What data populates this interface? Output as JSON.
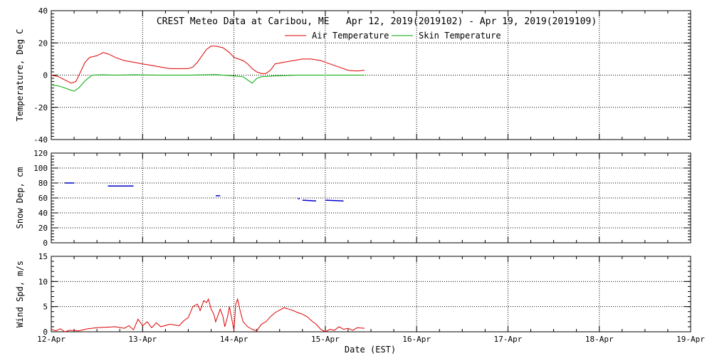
{
  "title": "CREST Meteo Data at Caribou, ME   Apr 12, 2019(2019102) - Apr 19, 2019(2019109)",
  "xlabel": "Date (EST)",
  "colors": {
    "air": "#dd0000",
    "skin": "#00aa00",
    "snow": "#0000cc",
    "wind": "#dd0000",
    "axis": "#000000"
  },
  "chart_data": [
    {
      "type": "line",
      "ylabel": "Temperature, Deg C",
      "xlim": [
        0,
        7
      ],
      "ylim": [
        -40,
        40
      ],
      "yticks": [
        -40,
        -20,
        0,
        20,
        40
      ],
      "xtick_labels": [
        "12-Apr",
        "13-Apr",
        "14-Apr",
        "15-Apr",
        "16-Apr",
        "17-Apr",
        "18-Apr",
        "19-Apr"
      ],
      "x_units": "days since Apr 12 00:00 EST",
      "legend_position": "top-center",
      "series": [
        {
          "name": "Air Temperature",
          "points": [
            [
              0,
              0
            ],
            [
              0.08,
              -1
            ],
            [
              0.15,
              -3
            ],
            [
              0.22,
              -5
            ],
            [
              0.27,
              -4
            ],
            [
              0.32,
              2
            ],
            [
              0.37,
              8
            ],
            [
              0.42,
              11
            ],
            [
              0.5,
              12
            ],
            [
              0.57,
              14
            ],
            [
              0.63,
              13
            ],
            [
              0.7,
              11
            ],
            [
              0.8,
              9
            ],
            [
              0.9,
              8
            ],
            [
              1.0,
              7
            ],
            [
              1.1,
              6
            ],
            [
              1.2,
              5
            ],
            [
              1.3,
              4
            ],
            [
              1.4,
              4
            ],
            [
              1.5,
              4
            ],
            [
              1.55,
              5
            ],
            [
              1.6,
              8
            ],
            [
              1.65,
              12
            ],
            [
              1.7,
              16
            ],
            [
              1.75,
              18
            ],
            [
              1.8,
              18
            ],
            [
              1.88,
              17
            ],
            [
              1.95,
              14
            ],
            [
              2.0,
              11
            ],
            [
              2.1,
              9
            ],
            [
              2.15,
              7
            ],
            [
              2.2,
              4
            ],
            [
              2.25,
              2
            ],
            [
              2.3,
              1
            ],
            [
              2.35,
              1
            ],
            [
              2.4,
              3
            ],
            [
              2.45,
              7
            ],
            [
              2.55,
              8
            ],
            [
              2.65,
              9
            ],
            [
              2.75,
              10
            ],
            [
              2.85,
              10
            ],
            [
              2.95,
              9
            ],
            [
              3.05,
              7
            ],
            [
              3.15,
              5
            ],
            [
              3.25,
              3
            ],
            [
              3.35,
              2.5
            ],
            [
              3.43,
              3
            ]
          ]
        },
        {
          "name": "Skin Temperature",
          "points": [
            [
              0,
              -6
            ],
            [
              0.1,
              -7
            ],
            [
              0.2,
              -9
            ],
            [
              0.25,
              -10
            ],
            [
              0.3,
              -8
            ],
            [
              0.38,
              -3
            ],
            [
              0.45,
              0
            ],
            [
              0.55,
              0.2
            ],
            [
              0.7,
              0
            ],
            [
              0.9,
              0.2
            ],
            [
              1.2,
              0
            ],
            [
              1.5,
              0
            ],
            [
              1.8,
              0.3
            ],
            [
              2.0,
              -0.5
            ],
            [
              2.1,
              -1
            ],
            [
              2.15,
              -3
            ],
            [
              2.2,
              -5
            ],
            [
              2.25,
              -2
            ],
            [
              2.3,
              -1
            ],
            [
              2.45,
              -0.5
            ],
            [
              2.7,
              0
            ],
            [
              3.0,
              0
            ],
            [
              3.2,
              0
            ],
            [
              3.43,
              0
            ]
          ]
        }
      ]
    },
    {
      "type": "scatter",
      "ylabel": "Snow Dep, cm",
      "xlim": [
        0,
        7
      ],
      "ylim": [
        0,
        120
      ],
      "yticks": [
        0,
        20,
        40,
        60,
        80,
        100,
        120
      ],
      "series": [
        {
          "segments": [
            [
              [
                0.15,
                80
              ],
              [
                0.25,
                80
              ]
            ],
            [
              [
                0.62,
                76
              ],
              [
                0.9,
                76
              ]
            ],
            [
              [
                1.8,
                63
              ],
              [
                1.85,
                63
              ]
            ],
            [
              [
                2.7,
                59
              ],
              [
                2.72,
                59
              ]
            ],
            [
              [
                2.75,
                57
              ],
              [
                2.9,
                56
              ]
            ],
            [
              [
                3.0,
                57
              ],
              [
                3.2,
                56
              ]
            ]
          ]
        }
      ]
    },
    {
      "type": "line",
      "ylabel": "Wind Spd, m/s",
      "xlim": [
        0,
        7
      ],
      "ylim": [
        0,
        15
      ],
      "yticks": [
        0,
        5,
        10,
        15
      ],
      "series": [
        {
          "points": [
            [
              0,
              0.5
            ],
            [
              0.05,
              0.2
            ],
            [
              0.1,
              0.6
            ],
            [
              0.15,
              0
            ],
            [
              0.2,
              0.3
            ],
            [
              0.3,
              0.2
            ],
            [
              0.4,
              0.6
            ],
            [
              0.5,
              0.8
            ],
            [
              0.6,
              0.9
            ],
            [
              0.7,
              1.0
            ],
            [
              0.8,
              0.7
            ],
            [
              0.85,
              1.2
            ],
            [
              0.9,
              0.4
            ],
            [
              0.95,
              2.5
            ],
            [
              1.0,
              1.2
            ],
            [
              1.05,
              2.0
            ],
            [
              1.1,
              0.8
            ],
            [
              1.15,
              1.8
            ],
            [
              1.2,
              1.0
            ],
            [
              1.3,
              1.5
            ],
            [
              1.4,
              1.2
            ],
            [
              1.45,
              2.2
            ],
            [
              1.5,
              2.8
            ],
            [
              1.55,
              5.0
            ],
            [
              1.6,
              5.5
            ],
            [
              1.63,
              4.2
            ],
            [
              1.67,
              6.2
            ],
            [
              1.7,
              5.8
            ],
            [
              1.72,
              6.5
            ],
            [
              1.75,
              4.5
            ],
            [
              1.78,
              3.5
            ],
            [
              1.8,
              2.0
            ],
            [
              1.85,
              4.5
            ],
            [
              1.88,
              3.0
            ],
            [
              1.9,
              1.0
            ],
            [
              1.93,
              3.0
            ],
            [
              1.95,
              5.0
            ],
            [
              2.0,
              0.3
            ],
            [
              2.02,
              5.5
            ],
            [
              2.04,
              6.5
            ],
            [
              2.07,
              4.0
            ],
            [
              2.1,
              2.0
            ],
            [
              2.15,
              1.0
            ],
            [
              2.2,
              0.5
            ],
            [
              2.25,
              0.2
            ],
            [
              2.3,
              1.5
            ],
            [
              2.35,
              2.0
            ],
            [
              2.4,
              3.0
            ],
            [
              2.45,
              3.8
            ],
            [
              2.5,
              4.3
            ],
            [
              2.55,
              4.8
            ],
            [
              2.6,
              4.5
            ],
            [
              2.65,
              4.2
            ],
            [
              2.7,
              3.8
            ],
            [
              2.75,
              3.5
            ],
            [
              2.8,
              3.0
            ],
            [
              2.85,
              2.2
            ],
            [
              2.9,
              1.5
            ],
            [
              2.95,
              0.5
            ],
            [
              3.0,
              0
            ],
            [
              3.05,
              0.5
            ],
            [
              3.1,
              0.3
            ],
            [
              3.15,
              1.0
            ],
            [
              3.2,
              0.5
            ],
            [
              3.25,
              0.7
            ],
            [
              3.3,
              0.3
            ],
            [
              3.35,
              0.8
            ],
            [
              3.43,
              0.7
            ]
          ]
        }
      ]
    }
  ]
}
